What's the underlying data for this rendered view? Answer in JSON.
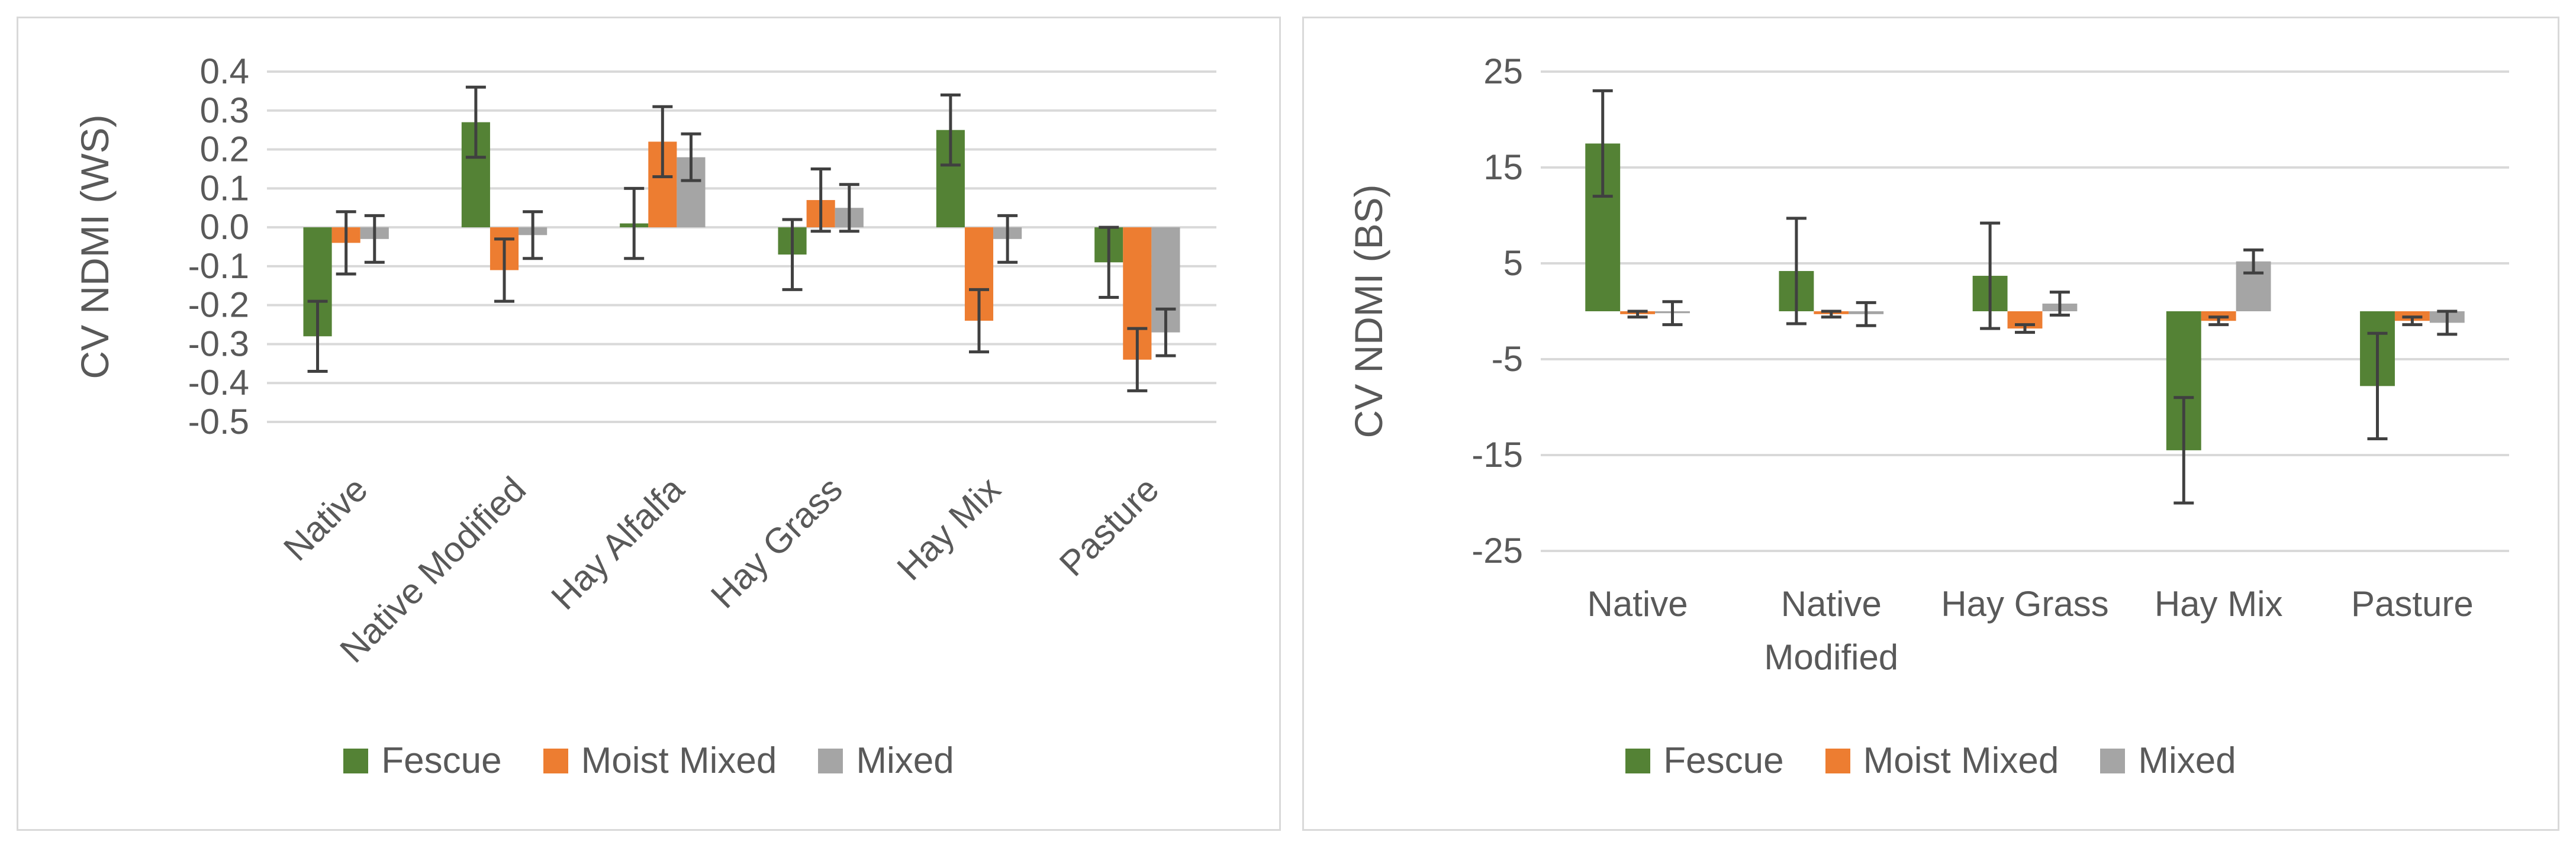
{
  "chart_data": [
    {
      "type": "bar",
      "ylabel": "CV NDMI (WS)",
      "categories": [
        "Native",
        "Native Modified",
        "Hay Alfalfa",
        "Hay Grass",
        "Hay Mix",
        "Pasture"
      ],
      "series": [
        {
          "name": "Fescue",
          "color": "#548235",
          "values": [
            -0.28,
            0.27,
            0.01,
            -0.07,
            0.25,
            -0.09
          ],
          "errors": [
            0.09,
            0.09,
            0.09,
            0.09,
            0.09,
            0.09
          ]
        },
        {
          "name": "Moist Mixed",
          "color": "#ED7D31",
          "values": [
            -0.04,
            -0.11,
            0.22,
            0.07,
            -0.24,
            -0.34
          ],
          "errors": [
            0.08,
            0.08,
            0.09,
            0.08,
            0.08,
            0.08
          ]
        },
        {
          "name": "Mixed",
          "color": "#A5A5A5",
          "values": [
            -0.03,
            -0.02,
            0.18,
            0.05,
            -0.03,
            -0.27
          ],
          "errors": [
            0.06,
            0.06,
            0.06,
            0.06,
            0.06,
            0.06
          ]
        }
      ],
      "yticks": [
        "0.4",
        "0.3",
        "0.2",
        "0.1",
        "0.0",
        "-0.1",
        "-0.2",
        "-0.3",
        "-0.4",
        "-0.5"
      ],
      "ylim": [
        -0.5,
        0.4
      ],
      "grid": true,
      "legend": "bottom"
    },
    {
      "type": "bar",
      "ylabel": "CV NDMI (BS)",
      "categories": [
        "Native",
        "Native Modified",
        "Hay Grass",
        "Hay Mix",
        "Pasture"
      ],
      "category_lines": [
        [
          "Native"
        ],
        [
          "Native",
          "Modified"
        ],
        [
          "Hay Grass"
        ],
        [
          "Hay Mix"
        ],
        [
          "Pasture"
        ]
      ],
      "series": [
        {
          "name": "Fescue",
          "color": "#548235",
          "values": [
            17.5,
            4.2,
            3.7,
            -14.5,
            -7.8
          ],
          "errors": [
            5.5,
            5.5,
            5.5,
            5.5,
            5.5
          ]
        },
        {
          "name": "Moist Mixed",
          "color": "#ED7D31",
          "values": [
            -0.3,
            -0.3,
            -1.8,
            -1.0,
            -1.0
          ],
          "errors": [
            0.3,
            0.3,
            0.4,
            0.4,
            0.4
          ]
        },
        {
          "name": "Mixed",
          "color": "#A5A5A5",
          "values": [
            -0.2,
            -0.3,
            0.8,
            5.2,
            -1.2
          ],
          "errors": [
            1.2,
            1.2,
            1.2,
            1.2,
            1.2
          ]
        }
      ],
      "yticks": [
        "25",
        "15",
        "5",
        "-5",
        "-15",
        "-25"
      ],
      "ylim": [
        -25,
        25
      ],
      "grid": true,
      "legend": "bottom"
    }
  ]
}
